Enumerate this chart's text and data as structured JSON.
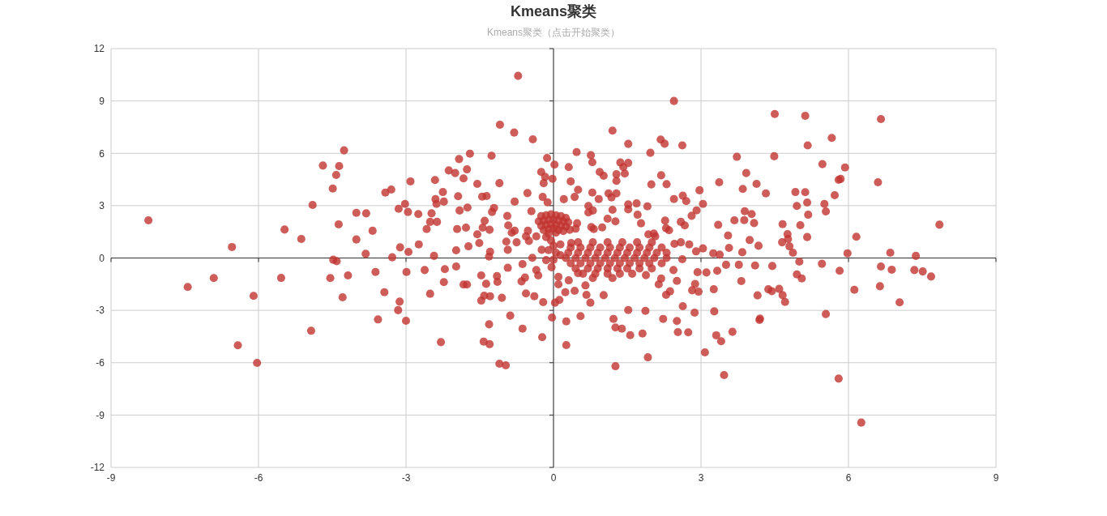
{
  "chart_data": {
    "type": "scatter",
    "title": "Kmeans聚类",
    "subtitle": "Kmeans聚类（点击开始聚类）",
    "color": "#c23531",
    "marker": "circle",
    "grid": true,
    "xlim": [
      -9,
      9
    ],
    "xticks": [
      -9,
      -6,
      -3,
      0,
      3,
      6,
      9
    ],
    "ylim": [
      -12,
      12
    ],
    "yticks": [
      -12,
      -9,
      -6,
      -3,
      0,
      3,
      6,
      9,
      12
    ],
    "x": [
      -8.24,
      -6.54,
      -4.26,
      -4.69,
      -4.36,
      -4.42,
      -4.49,
      -4.9,
      -5.47,
      -5.13,
      -4.37,
      -4.01,
      -3.81,
      -3.68,
      -4.01,
      -3.82,
      -3.42,
      -3.3,
      -3.15,
      -3.12,
      -3.28,
      -4.48,
      -7.44,
      -6.91,
      -6.1,
      -5.54,
      -6.42,
      -6.03,
      -4.93,
      -4.54,
      -4.18,
      -4.29,
      -3.62,
      -3.44,
      -3.13,
      -3.16,
      -3.57,
      -4.41,
      -2.99,
      -0.72,
      2.45,
      -1.09,
      -0.8,
      -0.42,
      1.2,
      1.52,
      2.18,
      2.26,
      2.62,
      -1.92,
      -1.7,
      -1.26,
      -0.13,
      0.02,
      0.47,
      0.76,
      0.79,
      1.97,
      -2.13,
      -2.0,
      -1.76,
      -1.83,
      -1.55,
      -1.1,
      -0.25,
      -0.17,
      -0.2,
      -0.02,
      0.31,
      0.35,
      0.94,
      1.02,
      1.36,
      1.52,
      1.42,
      1.45,
      1.28,
      1.28,
      2.19,
      2.3,
      1.99,
      -2.91,
      -2.41,
      -2.25,
      -2.4,
      -2.38,
      -2.23,
      -1.94,
      -1.45,
      -1.36,
      -0.79,
      -0.53,
      -0.22,
      -0.12,
      0.21,
      0.43,
      0.5,
      0.79,
      0.92,
      1.12,
      1.18,
      1.28,
      2.45,
      2.63,
      2.7,
      2.97,
      3.04,
      -3.02,
      -2.96,
      -2.75,
      -2.48,
      -2.51,
      -2.58,
      -2.37,
      -1.91,
      -1.75,
      -1.96,
      -1.78,
      -1.55,
      -1.4,
      -1.44,
      -1.3,
      -1.25,
      -1.21,
      -0.94,
      -0.92,
      -0.85,
      -0.79,
      -0.45,
      0.71,
      0.71,
      0.8,
      1.1,
      1.26,
      1.2,
      1.52,
      1.52,
      1.69,
      1.91,
      1.71,
      1.78,
      2.27,
      2.59,
      2.67,
      2.81,
      2.91,
      2.29,
      2.35,
      1.93,
      2.04,
      2.07,
      0.77,
      0.82,
      0.99,
      0.48,
      0.45,
      0.33,
      2.46,
      2.59,
      2.76,
      2.9,
      3.04,
      -2.95,
      -2.74,
      -2.43,
      -1.98,
      -1.73,
      -1.51,
      -1.29,
      -1.31,
      -0.96,
      -0.75,
      -0.93,
      -0.56,
      -0.5,
      4.5,
      5.12,
      6.66,
      5.66,
      5.17,
      3.73,
      4.49,
      5.47,
      5.93,
      3.92,
      5.8,
      5.84,
      6.6,
      3.37,
      3.85,
      4.13,
      4.32,
      4.92,
      5.12,
      5.72,
      4.95,
      5.16,
      5.51,
      3.89,
      4.03,
      3.88,
      3.68,
      4.08,
      5.18,
      5.54,
      3.35,
      4.66,
      5.02,
      7.85,
      3.55,
      4.76,
      4.77,
      4.65,
      4.8,
      5.16,
      6.16,
      3.99,
      4.17,
      3.57,
      3.25,
      3.38,
      3.84,
      4.87,
      5.98,
      6.85,
      7.37,
      -3.0,
      -2.29,
      -1.42,
      -1.3,
      -1.1,
      -0.97,
      -1.31,
      -0.88,
      -0.63,
      -0.23,
      -0.03,
      0.26,
      0.26,
      0.55,
      1.22,
      1.26,
      1.39,
      1.56,
      1.52,
      1.87,
      1.81,
      1.92,
      1.26,
      2.23,
      2.51,
      2.53,
      2.74,
      2.87,
      2.63,
      3.08,
      -2.51,
      -2.23,
      -2.62,
      -2.21,
      -1.98,
      -1.83,
      -1.76,
      -1.47,
      -1.37,
      -1.47,
      -1.41,
      -1.29,
      -1.15,
      -1.14,
      -1.05,
      -0.93,
      -0.63,
      -0.65,
      -0.58,
      -0.56,
      -0.39,
      -0.21,
      0.03,
      0.12,
      0.24,
      0.1,
      0.31,
      0.43,
      0.65,
      0.67,
      0.75,
      1.02,
      0.5,
      1.88,
      2.44,
      2.51,
      2.19,
      2.14,
      2.37,
      2.29,
      2.82,
      2.93,
      2.88,
      2.95,
      2.62,
      5.0,
      5.46,
      5.82,
      6.66,
      6.88,
      7.34,
      7.51,
      7.68,
      6.12,
      6.64,
      7.04,
      3.51,
      3.77,
      4.1,
      4.45,
      3.11,
      3.33,
      3.82,
      3.26,
      4.15,
      4.37,
      4.44,
      4.59,
      4.66,
      4.71,
      4.95,
      5.05,
      3.27,
      5.54,
      4.2,
      4.19,
      3.64,
      3.31,
      3.41,
      3.47,
      5.8,
      6.26,
      -0.15,
      -0.35,
      -0.31,
      -0.04,
      0.1,
      -0.52,
      -0.35,
      -0.24,
      -0.43,
      0.36,
      0.14,
      0.14,
      -0.25,
      -0.15,
      -0.05,
      0.05,
      0.15,
      0.25,
      -0.3,
      -0.2,
      -0.1,
      0,
      0.1,
      0.2,
      0.3,
      -0.25,
      -0.15,
      -0.05,
      0.05,
      0.15,
      0.25,
      -0.2,
      -0.1,
      0,
      0.1,
      0.2,
      -0.1,
      0.05,
      -0.15,
      -0.05,
      0,
      -0.1,
      0.05,
      0,
      0.5,
      0.8,
      1.1,
      1.4,
      1.7,
      2.0,
      0.35,
      0.55,
      0.75,
      0.95,
      1.15,
      1.35,
      1.55,
      1.75,
      1.95,
      2.2,
      0.3,
      0.5,
      0.7,
      0.9,
      1.1,
      1.3,
      1.5,
      1.7,
      1.9,
      2.1,
      2.3,
      0.25,
      0.45,
      0.65,
      0.85,
      1.05,
      1.25,
      1.45,
      1.65,
      1.85,
      2.05,
      2.3,
      0.35,
      0.55,
      0.75,
      0.95,
      1.15,
      1.35,
      1.55,
      1.75,
      1.95,
      2.2,
      0.45,
      0.7,
      0.9,
      1.1,
      1.3,
      1.5,
      1.75,
      2.0,
      0.6,
      0.85,
      1.1,
      1.35,
      1.6,
      0.8,
      1.2
    ],
    "values": [
      2.16,
      0.63,
      6.17,
      5.3,
      5.27,
      4.76,
      3.98,
      3.04,
      1.63,
      1.09,
      1.93,
      2.59,
      2.56,
      1.56,
      1.06,
      0.24,
      3.75,
      3.92,
      2.82,
      0.61,
      0.04,
      -0.1,
      -1.66,
      -1.15,
      -2.17,
      -1.14,
      -5.0,
      -6.01,
      -4.17,
      -1.15,
      -1.0,
      -2.25,
      -0.8,
      -1.96,
      -2.5,
      -2.99,
      -3.52,
      -0.18,
      -0.8,
      10.44,
      9.0,
      7.64,
      7.19,
      6.8,
      7.3,
      6.54,
      6.79,
      6.55,
      6.45,
      5.67,
      5.98,
      5.86,
      5.73,
      5.35,
      6.07,
      5.89,
      5.49,
      6.03,
      5.02,
      4.87,
      5.08,
      4.56,
      4.25,
      4.29,
      4.93,
      4.65,
      4.29,
      4.54,
      5.21,
      4.39,
      4.93,
      4.71,
      5.47,
      5.45,
      5.21,
      4.84,
      4.8,
      4.42,
      4.74,
      4.23,
      4.22,
      4.39,
      4.47,
      3.78,
      3.37,
      3.1,
      3.23,
      3.54,
      3.52,
      3.55,
      3.23,
      3.72,
      3.5,
      3.19,
      3.37,
      3.5,
      3.91,
      3.75,
      3.38,
      3.7,
      3.47,
      3.7,
      3.38,
      3.57,
      3.26,
      3.88,
      3.1,
      3.1,
      2.64,
      2.52,
      2.56,
      2.07,
      1.66,
      2.07,
      2.72,
      2.89,
      1.66,
      1.74,
      1.36,
      2.13,
      1.74,
      1.62,
      2.64,
      2.87,
      2.41,
      1.87,
      1.45,
      1.56,
      2.68,
      2.98,
      2.61,
      2.72,
      2.25,
      2.1,
      2.76,
      3.07,
      2.79,
      3.13,
      2.96,
      2.48,
      1.99,
      2.14,
      2.07,
      1.87,
      2.42,
      2.73,
      1.71,
      1.59,
      1.36,
      1.4,
      1.24,
      1.77,
      1.66,
      1.75,
      1.99,
      1.68,
      1.62,
      0.81,
      0.9,
      0.78,
      0.38,
      0.55,
      0.35,
      0.78,
      0.12,
      0.44,
      0.67,
      0.86,
      0.36,
      0.08,
      0.94,
      0.9,
      0.47,
      1.24,
      0.98,
      8.25,
      8.15,
      7.96,
      6.88,
      6.45,
      5.8,
      5.83,
      5.38,
      5.19,
      4.87,
      4.48,
      4.53,
      4.34,
      4.34,
      3.96,
      4.25,
      3.7,
      3.78,
      3.77,
      3.6,
      2.98,
      3.18,
      3.1,
      2.68,
      2.52,
      2.17,
      2.16,
      2.0,
      2.48,
      2.67,
      1.9,
      1.94,
      1.88,
      1.91,
      1.29,
      1.37,
      1.09,
      0.9,
      0.67,
      1.2,
      1.22,
      1.03,
      0.7,
      0.58,
      0.27,
      0.19,
      0.33,
      0.3,
      0.27,
      0.3,
      0.12,
      -3.6,
      -4.82,
      -4.79,
      -4.94,
      -6.06,
      -6.15,
      -3.8,
      -3.3,
      -4.05,
      -4.54,
      -3.41,
      -3.63,
      -4.99,
      -3.33,
      -3.49,
      -3.98,
      -4.05,
      -4.42,
      -2.98,
      -3.03,
      -4.33,
      -5.69,
      -6.2,
      -3.49,
      -3.61,
      -4.25,
      -4.26,
      -3.13,
      -2.76,
      -5.41,
      -2.05,
      -1.38,
      -0.69,
      -0.64,
      -0.49,
      -1.52,
      -1.52,
      -1.0,
      -1.48,
      -2.44,
      -2.16,
      -2.19,
      -1.04,
      -1.37,
      -2.28,
      -0.56,
      -0.35,
      -1.34,
      -1.12,
      -2.03,
      -2.19,
      -2.53,
      -2.56,
      -2.4,
      -1.96,
      -1.51,
      -1.28,
      -1.88,
      -1.57,
      -2.11,
      -2.56,
      -2.13,
      -0.87,
      -0.98,
      -0.69,
      -1.31,
      -1.18,
      -1.51,
      -1.91,
      -2.11,
      -1.85,
      -0.81,
      -1.49,
      -1.93,
      -0.07,
      -0.21,
      -0.33,
      -0.73,
      -0.49,
      -0.67,
      -0.69,
      -0.77,
      -1.06,
      -1.82,
      -1.62,
      -2.54,
      -0.39,
      -0.39,
      -0.43,
      -0.46,
      -0.83,
      -0.73,
      -1.32,
      -1.79,
      -2.14,
      -1.79,
      -1.9,
      -1.77,
      -2.13,
      -2.52,
      -0.94,
      -1.17,
      -3.06,
      -3.21,
      -3.47,
      -3.55,
      -4.23,
      -4.43,
      -4.77,
      -6.71,
      -6.91,
      -9.43,
      -0.12,
      -0.69,
      -1.0,
      -0.53,
      -1.08,
      1.56,
      1.24,
      0.47,
      0.01,
      0.86,
      0.78,
      0.16,
      2.4,
      2.45,
      2.5,
      2.45,
      2.4,
      2.3,
      2.1,
      2.15,
      2.2,
      2.2,
      2.15,
      2.1,
      2.05,
      1.85,
      1.9,
      1.95,
      1.9,
      1.85,
      1.8,
      1.6,
      1.65,
      1.7,
      1.6,
      1.55,
      1.4,
      1.45,
      1.2,
      1.0,
      0.7,
      0.45,
      0.3,
      -0.1,
      0.9,
      0.9,
      0.9,
      0.9,
      0.9,
      0.9,
      0.6,
      0.6,
      0.6,
      0.6,
      0.6,
      0.6,
      0.6,
      0.6,
      0.6,
      0.6,
      0.3,
      0.3,
      0.3,
      0.3,
      0.3,
      0.3,
      0.3,
      0.3,
      0.3,
      0.3,
      0.3,
      0,
      0,
      0,
      0,
      0,
      0,
      0,
      0,
      0,
      0,
      0,
      -0.3,
      -0.3,
      -0.3,
      -0.3,
      -0.3,
      -0.3,
      -0.3,
      -0.3,
      -0.3,
      -0.3,
      -0.6,
      -0.6,
      -0.6,
      -0.6,
      -0.6,
      -0.6,
      -0.6,
      -0.6,
      -0.9,
      -0.9,
      -0.9,
      -0.9,
      -0.9,
      -1.15,
      -1.15
    ]
  }
}
